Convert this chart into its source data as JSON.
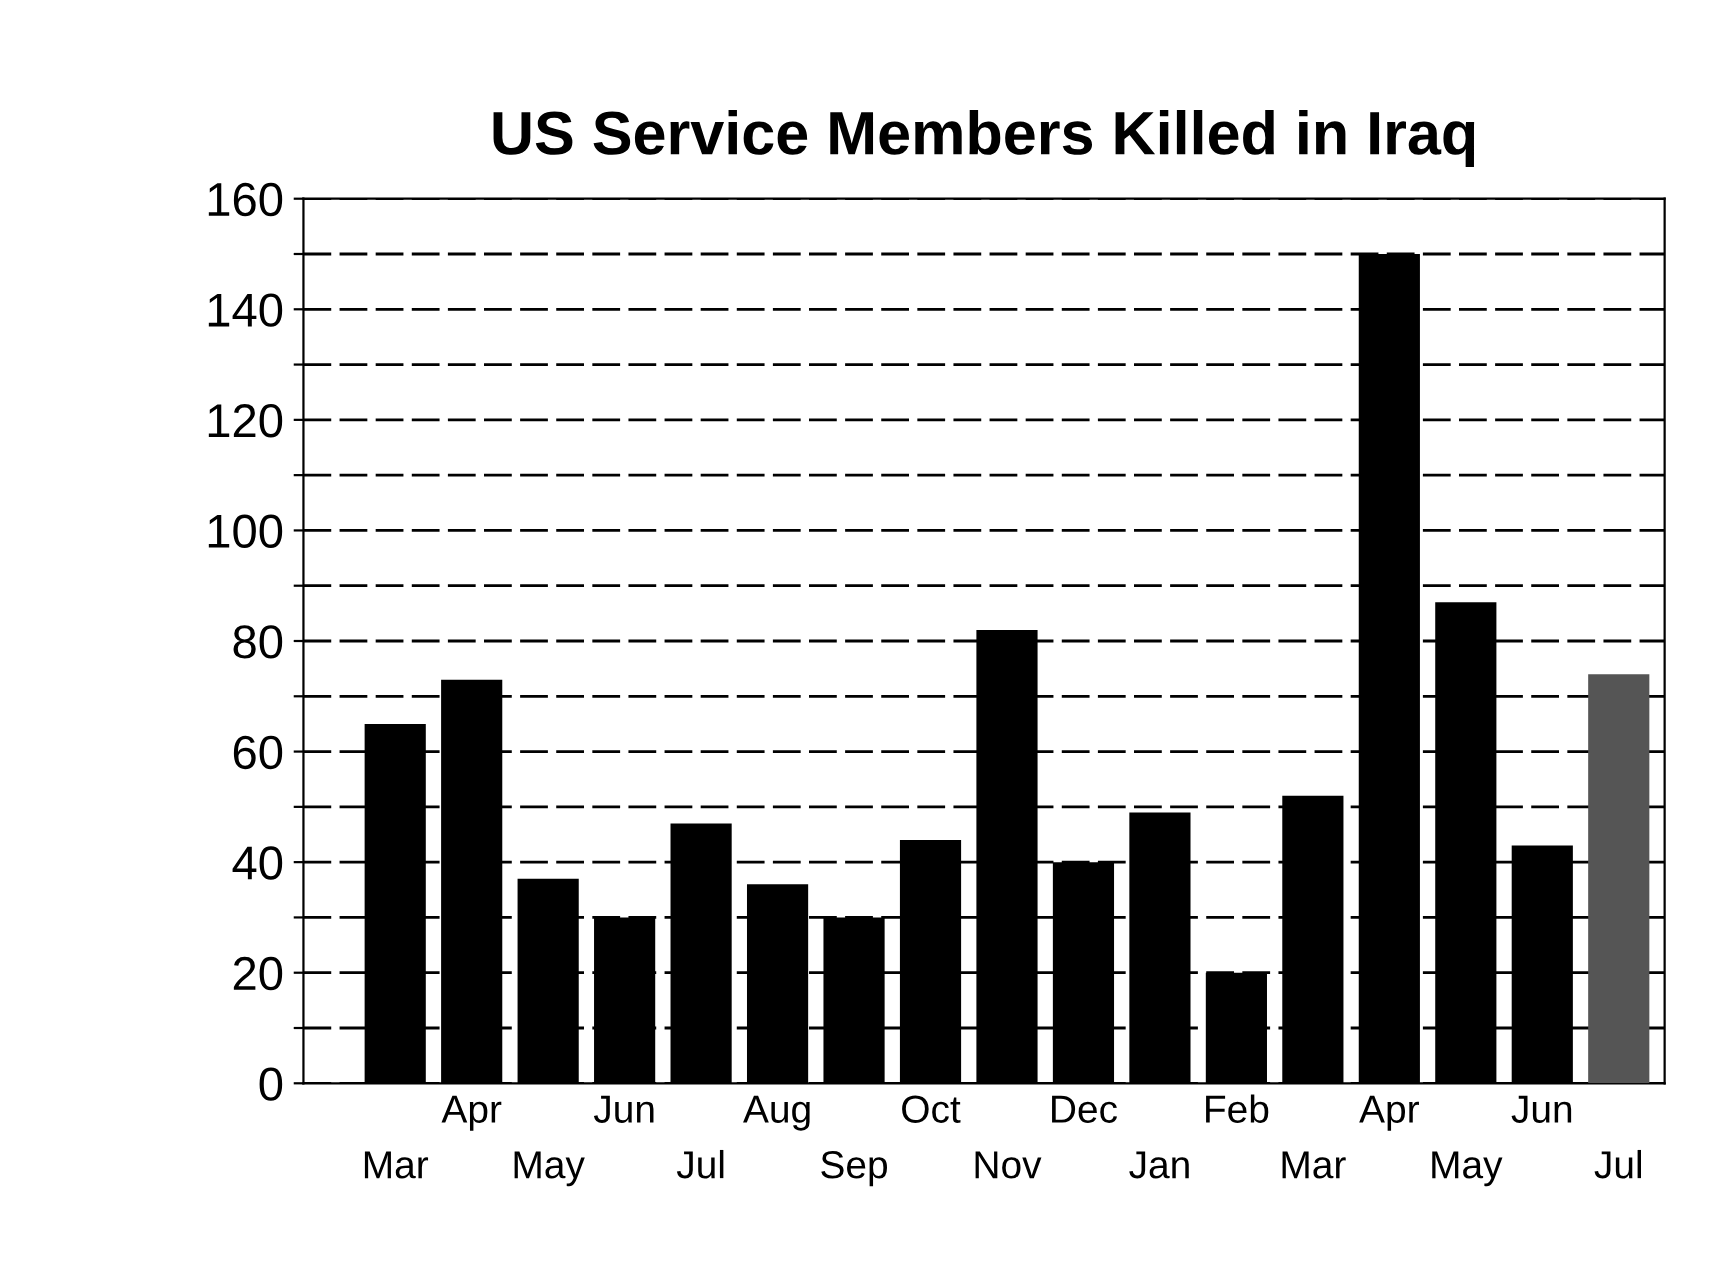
{
  "chart_data": {
    "type": "bar",
    "title": "US Service Members Killed in Iraq",
    "categories": [
      "Mar",
      "Apr",
      "May",
      "Jun",
      "Jul",
      "Aug",
      "Sep",
      "Oct",
      "Nov",
      "Dec",
      "Jan",
      "Feb",
      "Mar",
      "Apr",
      "May",
      "Jun",
      "Jul"
    ],
    "values": [
      65,
      73,
      37,
      30,
      47,
      36,
      30,
      44,
      82,
      40,
      49,
      20,
      52,
      150,
      87,
      43,
      74
    ],
    "colors": [
      "#000000",
      "#000000",
      "#000000",
      "#000000",
      "#000000",
      "#000000",
      "#000000",
      "#000000",
      "#000000",
      "#000000",
      "#000000",
      "#000000",
      "#000000",
      "#000000",
      "#000000",
      "#000000",
      "#555555"
    ],
    "ylim": [
      0,
      160
    ],
    "yticks": [
      0,
      {
        "value": 10,
        "label": null
      },
      20,
      {
        "value": 30,
        "label": null
      },
      40,
      {
        "value": 50,
        "label": null
      },
      60,
      {
        "value": 70,
        "label": null
      },
      80,
      {
        "value": 90,
        "label": null
      },
      100,
      {
        "value": 110,
        "label": null
      },
      120,
      {
        "value": 130,
        "label": null
      },
      140,
      {
        "value": 150,
        "label": null
      },
      160
    ],
    "grid": "y"
  }
}
